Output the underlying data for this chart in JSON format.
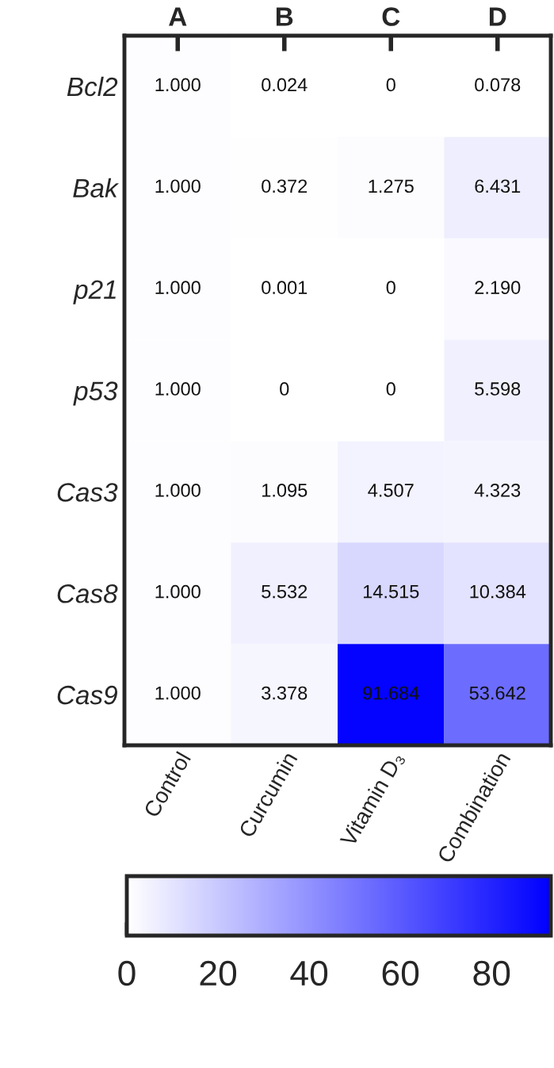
{
  "chart_data": {
    "type": "heatmap",
    "categories": [
      "Control",
      "Curcumin",
      "Vitamin D₃",
      "Combination"
    ],
    "annotations": [
      "A",
      "B",
      "C",
      "D"
    ],
    "y_categories": [
      "Bcl2",
      "Bak",
      "p21",
      "p53",
      "Cas3",
      "Cas8",
      "Cas9"
    ],
    "cells": [
      [
        1.0,
        0.024,
        0,
        0.078
      ],
      [
        1.0,
        0.372,
        1.275,
        6.431
      ],
      [
        1.0,
        0.001,
        0,
        2.19
      ],
      [
        1.0,
        0,
        0,
        5.598
      ],
      [
        1.0,
        1.095,
        4.507,
        4.323
      ],
      [
        1.0,
        5.532,
        14.515,
        10.384
      ],
      [
        1.0,
        3.378,
        91.684,
        53.642
      ]
    ],
    "cell_labels": [
      [
        "1.000",
        "0.024",
        "0",
        "0.078"
      ],
      [
        "1.000",
        "0.372",
        "1.275",
        "6.431"
      ],
      [
        "1.000",
        "0.001",
        "0",
        "2.190"
      ],
      [
        "1.000",
        "0",
        "0",
        "5.598"
      ],
      [
        "1.000",
        "1.095",
        "4.507",
        "4.323"
      ],
      [
        "1.000",
        "5.532",
        "14.515",
        "10.384"
      ],
      [
        "1.000",
        "3.378",
        "91.684",
        "53.642"
      ]
    ],
    "colors": [
      "#ffffff",
      "#0000ff"
    ],
    "clim": [
      0,
      93
    ],
    "cticks": [
      0,
      20,
      40,
      60,
      80
    ]
  }
}
